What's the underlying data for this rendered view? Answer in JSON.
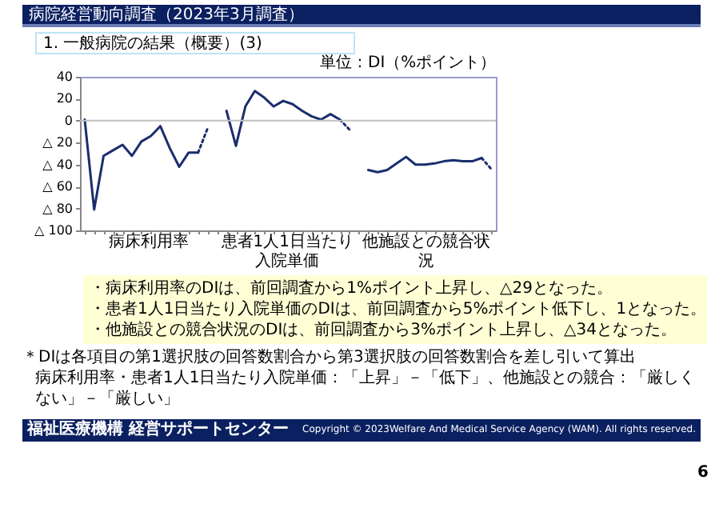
{
  "chart_data": {
    "type": "line",
    "title": "病院経営動向調査（2023年3月調査）",
    "subtitle": "1. 一般病院の結果（概要）(3)",
    "ylabel": "単位：DI（%ポイント）",
    "categories": [
      null,
      null,
      null,
      null,
      null,
      null,
      null,
      null,
      null,
      null,
      null,
      null,
      null,
      null,
      null,
      null,
      null,
      null,
      null,
      null,
      null,
      null,
      null,
      null,
      null,
      null,
      null,
      null,
      null,
      null,
      null,
      null,
      null,
      null,
      null,
      null,
      null,
      null,
      null,
      null,
      null,
      null,
      null,
      null
    ],
    "series": [
      {
        "color": "#1a2e6e",
        "line_style": "solid",
        "values": [
          1,
          -81,
          -32,
          -27,
          -22,
          -32,
          -19,
          -14,
          -5,
          -25,
          -42,
          -29,
          -29,
          null,
          null,
          null,
          null,
          null,
          null,
          null,
          null,
          null,
          null,
          null,
          null,
          null,
          null,
          null,
          null,
          null,
          null,
          null,
          null,
          null,
          null,
          null,
          null,
          null,
          null,
          null,
          null,
          null,
          null,
          null
        ]
      },
      {
        "color": "#1a2e6e",
        "line_style": "dotted",
        "values": [
          null,
          null,
          null,
          null,
          null,
          null,
          null,
          null,
          null,
          null,
          null,
          null,
          -29,
          -7,
          null,
          null,
          null,
          null,
          null,
          null,
          null,
          null,
          null,
          null,
          null,
          null,
          null,
          null,
          null,
          null,
          null,
          null,
          null,
          null,
          null,
          null,
          null,
          null,
          null,
          null,
          null,
          null,
          null,
          null
        ]
      },
      {
        "color": "#1a2e6e",
        "line_style": "solid",
        "values": [
          null,
          null,
          null,
          null,
          null,
          null,
          null,
          null,
          null,
          null,
          null,
          null,
          null,
          null,
          null,
          9,
          -23,
          13,
          27,
          21,
          13,
          18,
          15,
          9,
          4,
          1,
          6,
          1,
          null,
          null,
          null,
          null,
          null,
          null,
          null,
          null,
          null,
          null,
          null,
          null,
          null,
          null,
          null,
          null
        ]
      },
      {
        "color": "#1a2e6e",
        "line_style": "dotted",
        "values": [
          null,
          null,
          null,
          null,
          null,
          null,
          null,
          null,
          null,
          null,
          null,
          null,
          null,
          null,
          null,
          null,
          null,
          null,
          null,
          null,
          null,
          null,
          null,
          null,
          null,
          null,
          null,
          1,
          -8,
          null,
          null,
          null,
          null,
          null,
          null,
          null,
          null,
          null,
          null,
          null,
          null,
          null,
          null,
          null
        ]
      },
      {
        "color": "#1a2e6e",
        "line_style": "solid",
        "values": [
          null,
          null,
          null,
          null,
          null,
          null,
          null,
          null,
          null,
          null,
          null,
          null,
          null,
          null,
          null,
          null,
          null,
          null,
          null,
          null,
          null,
          null,
          null,
          null,
          null,
          null,
          null,
          null,
          null,
          null,
          -45,
          -47,
          -45,
          -39,
          -33,
          -40,
          -40,
          -39,
          -37,
          -36,
          -37,
          -37,
          -34,
          null
        ]
      },
      {
        "color": "#1a2e6e",
        "line_style": "dotted",
        "values": [
          null,
          null,
          null,
          null,
          null,
          null,
          null,
          null,
          null,
          null,
          null,
          null,
          null,
          null,
          null,
          null,
          null,
          null,
          null,
          null,
          null,
          null,
          null,
          null,
          null,
          null,
          null,
          null,
          null,
          null,
          null,
          null,
          null,
          null,
          null,
          null,
          null,
          null,
          null,
          null,
          null,
          null,
          -34,
          -44
        ]
      }
    ],
    "ylim": [
      -100,
      40
    ],
    "yticks": [
      {
        "value": -100,
        "label": "△ 100"
      },
      {
        "value": -80,
        "label": "△ 80"
      },
      {
        "value": -60,
        "label": "△ 60"
      },
      {
        "value": -40,
        "label": "△ 40"
      },
      {
        "value": -20,
        "label": "△ 20"
      },
      0,
      20,
      40
    ],
    "tick_labels": "y",
    "ref_lines": [
      {
        "axis": "y",
        "value": 0,
        "color": "#c0c0c0"
      }
    ],
    "annotations": [
      "病床利用率",
      "患者1人1日当たり入院単価",
      "他施設との競合状況",
      "・病床利用率のDIは、前回調査から1%ポイント上昇し、△29となった。",
      "・患者1人1日当たり入院単価のDIは、前回調査から5%ポイント低下し、1となった。",
      "・他施設との競合状況のDIは、前回調査から3%ポイント上昇し、△34となった。",
      "＊DIは各項目の第1選択肢の回答数割合から第3選択肢の回答数割合を差し引いて算出",
      "病床利用率・患者1人1日当たり入院単価：「上昇」－「低下」、他施設との競合：「厳しくない」－「厳しい」",
      "福祉医療機構 経営サポートセンター",
      "Copyright © 2023Welfare And Medical Service Agency (WAM). All rights reserved.",
      "6"
    ]
  }
}
